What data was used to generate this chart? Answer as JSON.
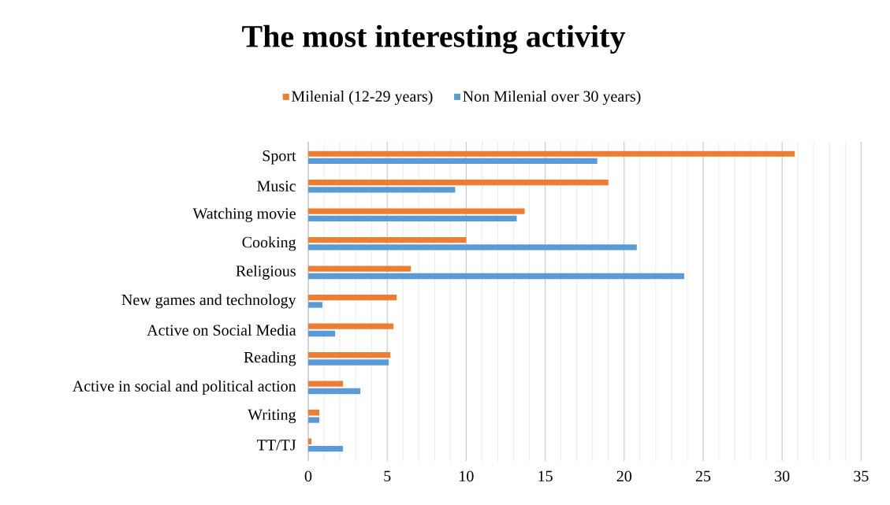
{
  "chart_data": {
    "type": "bar",
    "orientation": "horizontal",
    "title": "The most interesting activity",
    "categories": [
      "Sport",
      "Music",
      "Watching movie",
      "Cooking",
      "Religious",
      "New games and technology",
      "Active on Social Media",
      "Reading",
      "Active in social and political action",
      "Writing",
      "TT/TJ"
    ],
    "series": [
      {
        "name": "Milenial (12-29 years)",
        "color": "#ed7d31",
        "values": [
          30.8,
          19.0,
          13.7,
          10.0,
          6.5,
          5.6,
          5.4,
          5.2,
          2.2,
          0.7,
          0.2
        ]
      },
      {
        "name": "Non Milenial over 30 years)",
        "color": "#5b9bd5",
        "values": [
          18.3,
          9.3,
          13.2,
          20.8,
          23.8,
          0.9,
          1.7,
          5.1,
          3.3,
          0.7,
          2.2
        ]
      }
    ],
    "xlim": [
      0,
      35
    ],
    "xticks": [
      0,
      5,
      10,
      15,
      20,
      25,
      30,
      35
    ],
    "grid": "x",
    "legend": "top"
  }
}
